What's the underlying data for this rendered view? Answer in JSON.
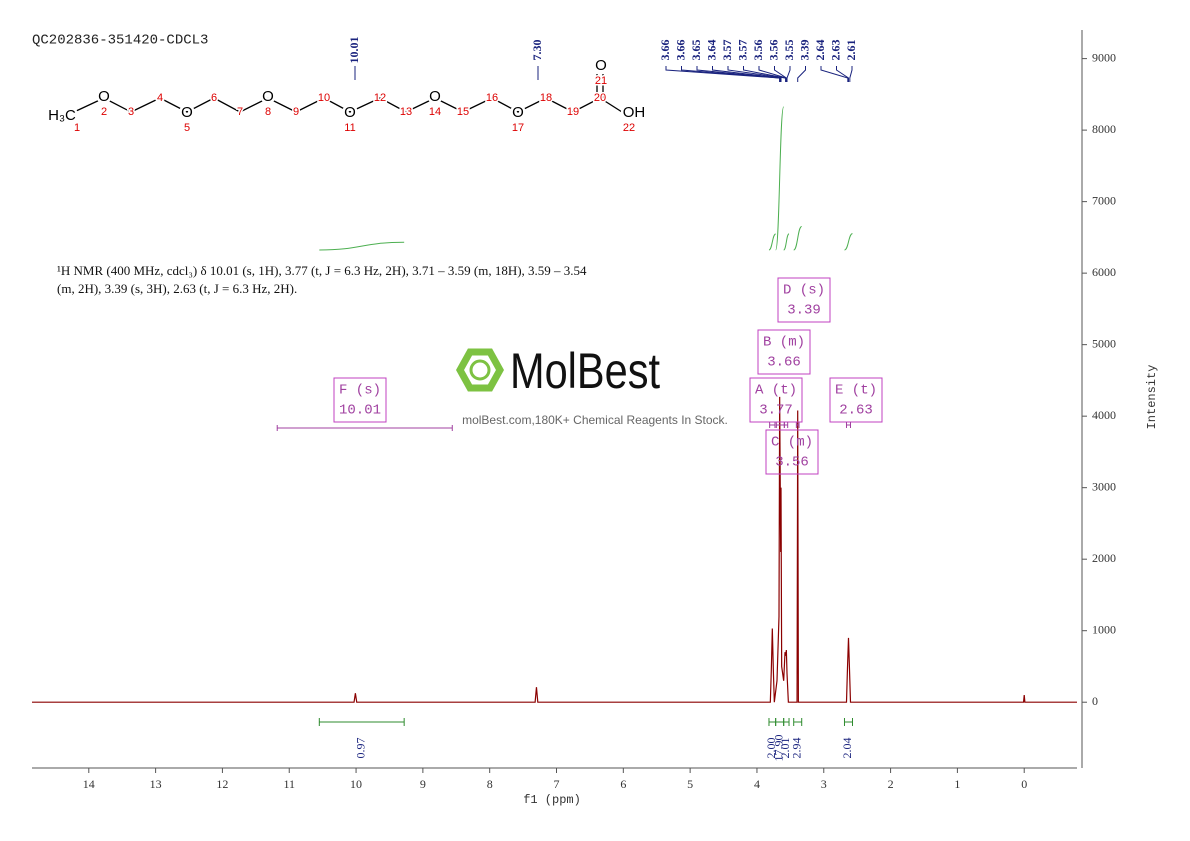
{
  "title": "QC202836-351420-CDCL3",
  "description": "¹H NMR (400 MHz, cdcl₃) δ 10.01 (s, 1H), 3.77 (t, J = 6.3 Hz, 2H), 3.71 – 3.59 (m, 18H), 3.59 – 3.54 (m, 2H), 3.39 (s, 3H), 2.63 (t, J = 6.3 Hz, 2H).",
  "watermark": {
    "brand": "MolBest",
    "tagline": "molBest.com,180K+ Chemical Reagents In Stock."
  },
  "molecule": {
    "symbols": [
      "H₃C",
      "O",
      "O",
      "O",
      "O",
      "O",
      "O",
      "O",
      "OH"
    ],
    "numbers": [
      1,
      2,
      3,
      4,
      5,
      6,
      7,
      8,
      9,
      10,
      11,
      12,
      13,
      14,
      15,
      16,
      17,
      18,
      19,
      20,
      21,
      22
    ]
  },
  "chart_data": {
    "type": "line",
    "x_label": "f1 (ppm)",
    "y_label": "Intensity",
    "color": "#8b0000",
    "xlim": [
      14.85,
      -0.79
    ],
    "ylim": [
      -920,
      9400
    ],
    "xticks": [
      14,
      13,
      12,
      11,
      10,
      9,
      8,
      7,
      6,
      5,
      4,
      3,
      2,
      1,
      0
    ],
    "yticks": [
      0,
      1000,
      2000,
      3000,
      4000,
      5000,
      6000,
      7000,
      8000,
      9000
    ],
    "x": [
      14.85,
      10.03,
      10.01,
      9.99,
      7.32,
      7.3,
      7.28,
      3.8,
      3.785,
      3.77,
      3.755,
      3.74,
      3.7,
      3.67,
      3.66,
      3.645,
      3.64,
      3.63,
      3.6,
      3.58,
      3.57,
      3.56,
      3.55,
      3.53,
      3.4,
      3.39,
      3.38,
      2.66,
      2.645,
      2.63,
      2.615,
      2.6,
      0.01,
      0,
      -0.01,
      -0.79
    ],
    "values": [
      0,
      0,
      125,
      0,
      0,
      210,
      0,
      0,
      450,
      1030,
      460,
      0,
      300,
      1200,
      4270,
      2100,
      3000,
      500,
      300,
      700,
      650,
      730,
      400,
      0,
      0,
      4080,
      0,
      0,
      480,
      900,
      460,
      0,
      0,
      100,
      0,
      0
    ],
    "peak_labels": [
      {
        "value": 10.01,
        "label": "10.01"
      },
      {
        "value": 7.3,
        "label": "7.30"
      },
      {
        "value": 3.66,
        "label": "3.66"
      },
      {
        "value": 3.66,
        "label": "3.66"
      },
      {
        "value": 3.65,
        "label": "3.65"
      },
      {
        "value": 3.64,
        "label": "3.64"
      },
      {
        "value": 3.57,
        "label": "3.57"
      },
      {
        "value": 3.57,
        "label": "3.57"
      },
      {
        "value": 3.56,
        "label": "3.56"
      },
      {
        "value": 3.56,
        "label": "3.56"
      },
      {
        "value": 3.55,
        "label": "3.55"
      },
      {
        "value": 3.39,
        "label": "3.39"
      },
      {
        "value": 2.64,
        "label": "2.64"
      },
      {
        "value": 2.63,
        "label": "2.63"
      },
      {
        "value": 2.61,
        "label": "2.61"
      }
    ],
    "integrals": [
      {
        "range": [
          10.55,
          9.28
        ],
        "value": {
          "value": 0.97,
          "label": "0.97"
        }
      },
      {
        "range": [
          3.82,
          3.72
        ],
        "value": {
          "value": 2,
          "label": "2.00"
        }
      },
      {
        "range": [
          3.72,
          3.6
        ],
        "value": {
          "value": 17.9,
          "label": "17.90"
        }
      },
      {
        "range": [
          3.6,
          3.52
        ],
        "value": {
          "value": 2.01,
          "label": "2.01"
        }
      },
      {
        "range": [
          3.45,
          3.33
        ],
        "value": {
          "value": 2.94,
          "label": "2.94"
        }
      },
      {
        "range": [
          2.69,
          2.57
        ],
        "value": {
          "value": 2.04,
          "label": "2.04"
        }
      }
    ],
    "multiplets": [
      {
        "name": "F (s)",
        "value": 10.01,
        "range": [
          11.18,
          8.56
        ]
      },
      {
        "name": "B (m)",
        "value": 3.66,
        "range": [
          3.71,
          3.59
        ]
      },
      {
        "name": "D (s)",
        "value": 3.39,
        "range": [
          3.41,
          3.37
        ]
      },
      {
        "name": "A (t)",
        "value": 3.77,
        "range": [
          3.81,
          3.73
        ]
      },
      {
        "name": "E (t)",
        "value": 2.63,
        "range": [
          2.66,
          2.6
        ]
      },
      {
        "name": "C (m)",
        "value": 3.56,
        "range": [
          3.59,
          3.54
        ]
      }
    ]
  }
}
